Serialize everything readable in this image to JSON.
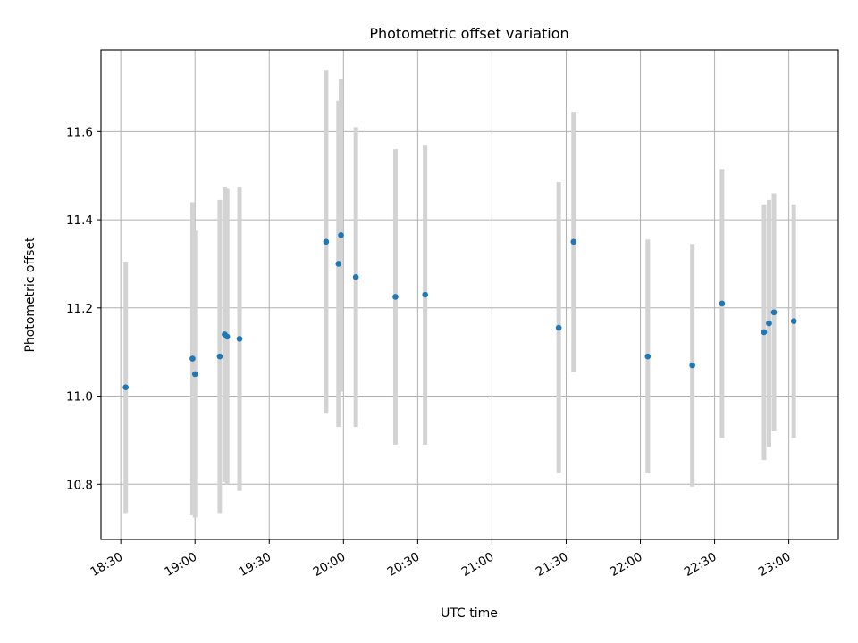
{
  "chart_data": {
    "type": "scatter",
    "title": "Photometric offset variation",
    "xlabel": "UTC time",
    "ylabel": "Photometric offset",
    "x_ticks": [
      "18:30",
      "19:00",
      "19:30",
      "20:00",
      "20:30",
      "21:00",
      "21:30",
      "22:00",
      "22:30",
      "23:00"
    ],
    "y_ticks": [
      10.8,
      11.0,
      11.2,
      11.4,
      11.6
    ],
    "xlim": [
      "18:22",
      "23:20"
    ],
    "ylim": [
      10.675,
      11.785
    ],
    "grid": true,
    "legend": "none",
    "colors": {
      "point": "#1f77b4",
      "errorbar": "#d3d3d3",
      "grid": "#b0b0b0"
    },
    "series": [
      {
        "points": [
          {
            "x": "18:32",
            "y": 11.02,
            "yerr": 0.285
          },
          {
            "x": "18:59",
            "y": 11.085,
            "yerr": 0.355
          },
          {
            "x": "19:00",
            "y": 11.05,
            "yerr": 0.325
          },
          {
            "x": "19:10",
            "y": 11.09,
            "yerr": 0.355
          },
          {
            "x": "19:12",
            "y": 11.14,
            "yerr": 0.335
          },
          {
            "x": "19:13",
            "y": 11.135,
            "yerr": 0.335
          },
          {
            "x": "19:18",
            "y": 11.13,
            "yerr": 0.345
          },
          {
            "x": "19:53",
            "y": 11.35,
            "yerr": 0.39
          },
          {
            "x": "19:58",
            "y": 11.3,
            "yerr": 0.37
          },
          {
            "x": "19:59",
            "y": 11.365,
            "yerr": 0.355
          },
          {
            "x": "20:05",
            "y": 11.27,
            "yerr": 0.34
          },
          {
            "x": "20:21",
            "y": 11.225,
            "yerr": 0.335
          },
          {
            "x": "20:33",
            "y": 11.23,
            "yerr": 0.34
          },
          {
            "x": "21:27",
            "y": 11.155,
            "yerr": 0.33
          },
          {
            "x": "21:33",
            "y": 11.35,
            "yerr": 0.295
          },
          {
            "x": "22:03",
            "y": 11.09,
            "yerr": 0.265
          },
          {
            "x": "22:21",
            "y": 11.07,
            "yerr": 0.275
          },
          {
            "x": "22:33",
            "y": 11.21,
            "yerr": 0.305
          },
          {
            "x": "22:50",
            "y": 11.145,
            "yerr": 0.29
          },
          {
            "x": "22:52",
            "y": 11.165,
            "yerr": 0.28
          },
          {
            "x": "22:54",
            "y": 11.19,
            "yerr": 0.27
          },
          {
            "x": "23:02",
            "y": 11.17,
            "yerr": 0.265
          }
        ]
      }
    ]
  }
}
